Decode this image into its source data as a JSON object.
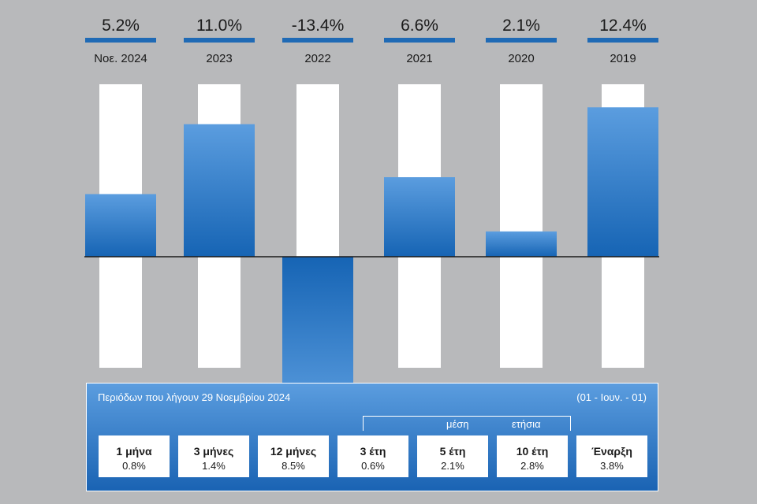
{
  "chart_data": {
    "type": "bar",
    "categories": [
      "Νοε. 2024",
      "2023",
      "2022",
      "2021",
      "2020",
      "2019"
    ],
    "values": [
      5.2,
      11.0,
      -13.4,
      6.6,
      2.1,
      12.4
    ],
    "value_labels": [
      "5.2%",
      "11.0%",
      "-13.4%",
      "6.6%",
      "2.1%",
      "12.4%"
    ],
    "ylim": [
      -14.8,
      14.3
    ],
    "grid": false,
    "title": "",
    "xlabel": "",
    "ylabel": "",
    "colors": {
      "bar_top": "#5b9ddf",
      "bar_bottom": "#1664b4",
      "underline": "#1f6ab5",
      "background": "#b8b9bb"
    }
  },
  "periods": {
    "title": "Περιόδων που λήγουν 29 Νοεμβρίου 2024",
    "inception_date": "(01 - Ιουν. - 01)",
    "bracket_left_label": "μέση",
    "bracket_right_label": "ετήσια",
    "items": [
      {
        "label": "1 μήνα",
        "value": "0.8%"
      },
      {
        "label": "3 μήνες",
        "value": "1.4%"
      },
      {
        "label": "12 μήνες",
        "value": "8.5%"
      },
      {
        "label": "3 έτη",
        "value": "0.6%"
      },
      {
        "label": "5 έτη",
        "value": "2.1%"
      },
      {
        "label": "10 έτη",
        "value": "2.8%"
      },
      {
        "label": "Έναρξη",
        "value": "3.8%"
      }
    ]
  }
}
